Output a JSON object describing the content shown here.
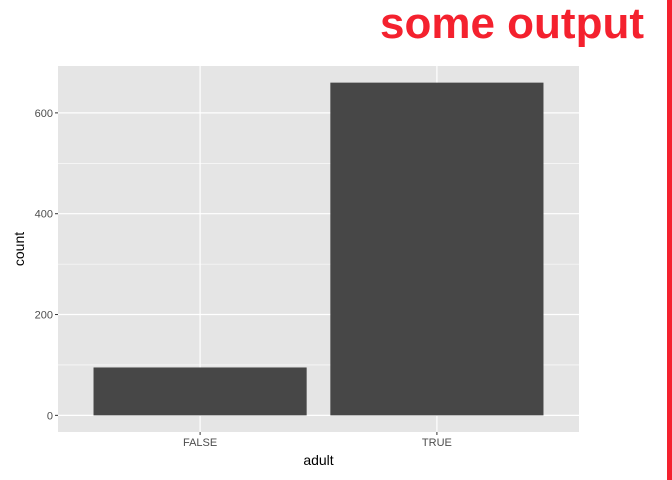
{
  "header": {
    "title": "some output"
  },
  "colors": {
    "accent": "#f4212e",
    "panel": "#e5e5e5",
    "bar": "#474747",
    "grid": "#ffffff"
  },
  "chart_data": {
    "type": "bar",
    "categories": [
      "FALSE",
      "TRUE"
    ],
    "values": [
      95,
      660
    ],
    "xlabel": "adult",
    "ylabel": "count",
    "ylim": [
      -33,
      693
    ],
    "yticks": [
      0,
      200,
      400,
      600
    ],
    "ytick_labels": [
      "0",
      "200",
      "400",
      "600"
    ],
    "grid": true,
    "legend": "none"
  }
}
